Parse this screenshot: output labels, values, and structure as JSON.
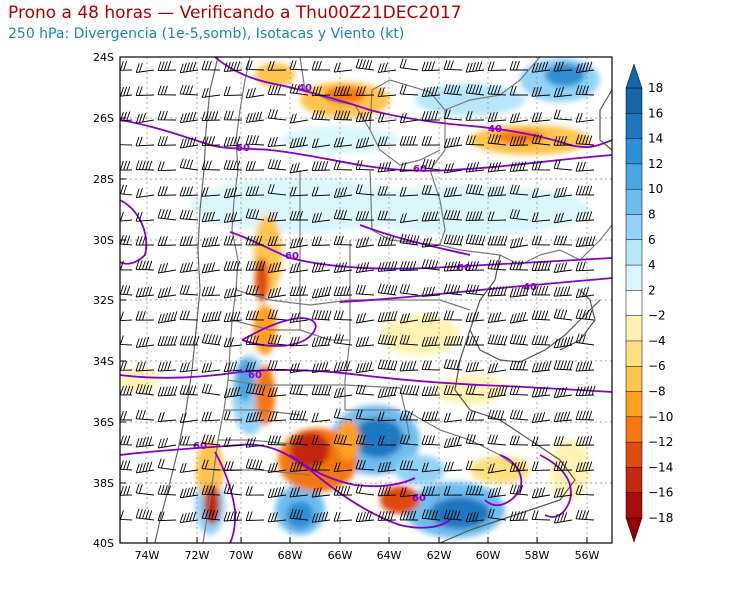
{
  "header": {
    "title": "Prono a 48 horas — Verificando a Thu00Z21DEC2017",
    "subtitle": "250 hPa: Divergencia (1e-5,somb), Isotacas y Viento (kt)"
  },
  "map": {
    "lat_range": [
      -40,
      -24
    ],
    "lon_range": [
      -75,
      -55
    ],
    "lat_labels": [
      "24S",
      "26S",
      "28S",
      "30S",
      "32S",
      "34S",
      "36S",
      "38S",
      "40S"
    ],
    "lon_labels": [
      "74W",
      "72W",
      "70W",
      "68W",
      "66W",
      "64W",
      "62W",
      "60W",
      "58W",
      "56W"
    ]
  },
  "colorbar": {
    "labels": [
      "18",
      "16",
      "14",
      "12",
      "10",
      "8",
      "6",
      "4",
      "2",
      "−2",
      "−4",
      "−6",
      "−8",
      "−10",
      "−12",
      "−14",
      "−16",
      "−18"
    ],
    "colors": [
      "#1565a8",
      "#1e78c0",
      "#2e8fd6",
      "#4ba6e6",
      "#6ebdf0",
      "#93d3f7",
      "#b8e7fb",
      "#dcf6fd",
      "#ffffff",
      "#fff3b3",
      "#ffdf80",
      "#ffc44d",
      "#ffa020",
      "#f57810",
      "#e04a10",
      "#c42810",
      "#a80c0c"
    ]
  },
  "isotach_labels": [
    "40",
    "40",
    "60",
    "60",
    "60",
    "60",
    "40",
    "60",
    "60",
    "60"
  ],
  "colors": {
    "title": "#b00000",
    "subtitle": "#1a86b8",
    "isotach": "#8800cc",
    "boundary": "#777777"
  }
}
